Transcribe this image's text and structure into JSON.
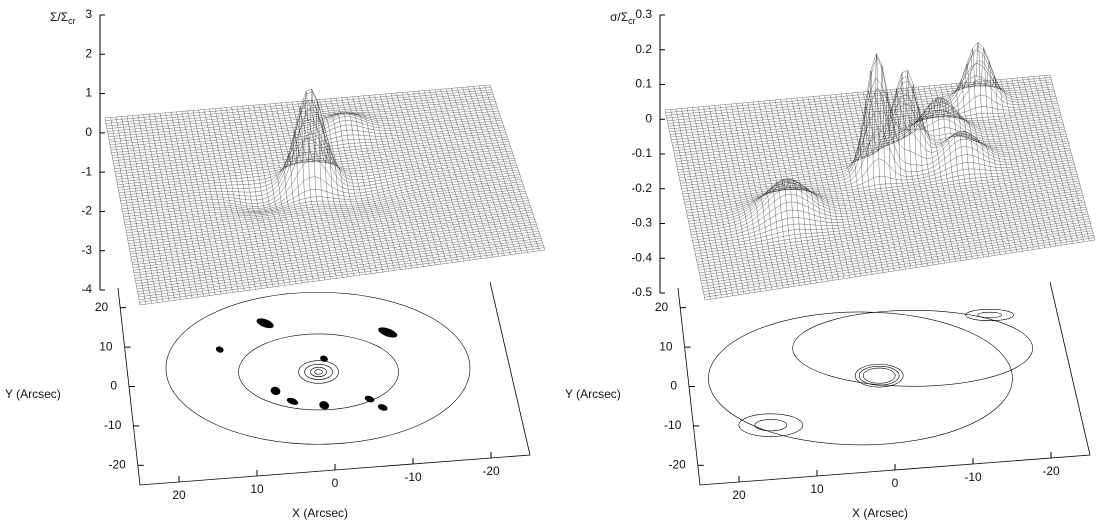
{
  "chart_data": [
    {
      "type": "surface",
      "zlabel_main": "Σ/Σ",
      "zlabel_sub": "cr",
      "zlim": [
        -4,
        3
      ],
      "zticks": [
        3,
        2,
        1,
        0,
        -1,
        -2,
        -3,
        -4
      ],
      "xlabel": "X (Arcsec)",
      "ylabel": "Y (Arcsec)",
      "xlim": [
        25,
        -25
      ],
      "xticks": [
        20,
        10,
        0,
        -10,
        -20
      ],
      "ylim": [
        -25,
        25
      ],
      "yticks": [
        20,
        10,
        0,
        -10,
        -20
      ]
    },
    {
      "type": "surface",
      "zlabel_main": "σ/Σ",
      "zlabel_sub": "cr",
      "zlim": [
        -0.5,
        0.3
      ],
      "zticks": [
        0.3,
        0.2,
        0.1,
        0,
        -0.1,
        -0.2,
        -0.3,
        -0.4,
        -0.5
      ],
      "xlabel": "X (Arcsec)",
      "ylabel": "Y (Arcsec)",
      "xlim": [
        25,
        -25
      ],
      "xticks": [
        20,
        10,
        0,
        -10,
        -20
      ],
      "ylim": [
        -25,
        25
      ],
      "yticks": [
        20,
        10,
        0,
        -10,
        -20
      ]
    }
  ]
}
